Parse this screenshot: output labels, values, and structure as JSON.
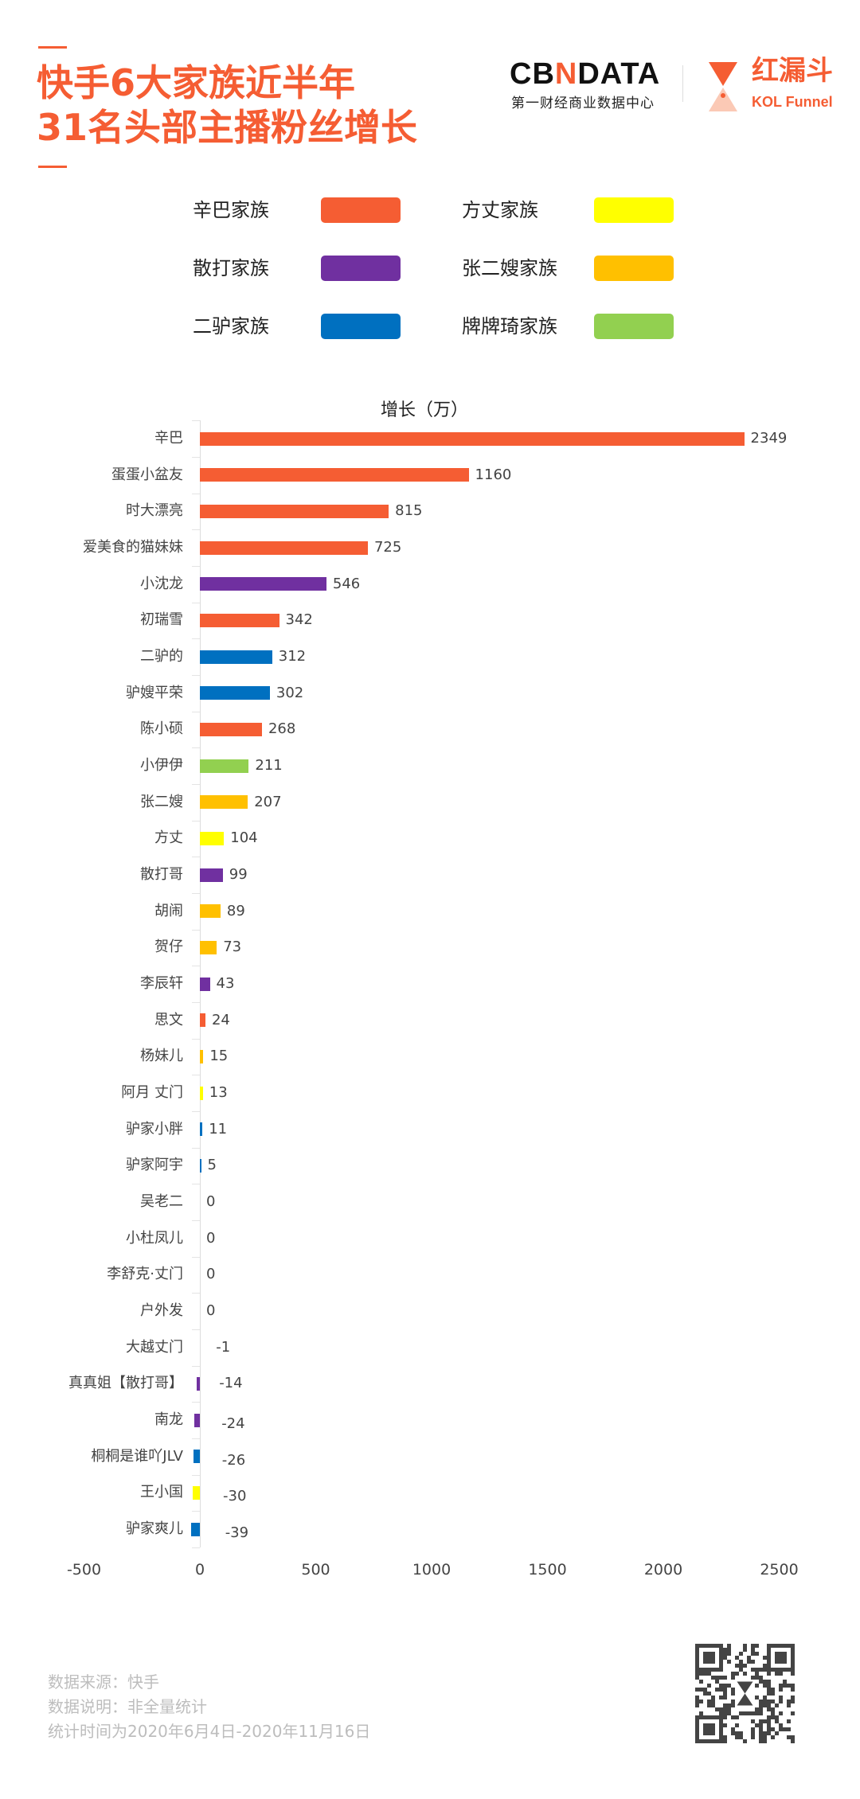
{
  "header": {
    "title_line1": "快手6大家族近半年",
    "title_line2": "31名头部主播粉丝增长"
  },
  "logos": {
    "cbndata": "CBNDATA",
    "cbndata_sub": "第一财经商业数据中心",
    "hld": "红漏斗",
    "kol": "KOL Funnel"
  },
  "legend": [
    {
      "label": "辛巴家族",
      "color": "#F55D33"
    },
    {
      "label": "方丈家族",
      "color": "#FFFF00"
    },
    {
      "label": "散打家族",
      "color": "#7030A0"
    },
    {
      "label": "张二嫂家族",
      "color": "#FFC000"
    },
    {
      "label": "二驴家族",
      "color": "#0070C0"
    },
    {
      "label": "牌牌琦家族",
      "color": "#92D050"
    }
  ],
  "chart_data": {
    "type": "bar",
    "orientation": "horizontal",
    "title": "增长（万）",
    "xlim": [
      -500,
      2500
    ],
    "xticks": [
      "-500",
      "0",
      "500",
      "1000",
      "1500",
      "2000",
      "2500"
    ],
    "grid": false,
    "legend_position": "top",
    "categories": [
      "辛巴",
      "蛋蛋小盆友",
      "时大漂亮",
      "爱美食的猫妹妹",
      "小沈龙",
      "初瑞雪",
      "二驴的",
      "驴嫂平荣",
      "陈小硕",
      "小伊伊",
      "张二嫂",
      "方丈",
      "散打哥",
      "胡闹",
      "贺仔",
      "李辰轩",
      "思文",
      "杨妹儿",
      "阿月 丈门",
      "驴家小胖",
      "驴家阿宇",
      "吴老二",
      "小杜凤儿",
      "李舒克·丈门",
      "户外发",
      "大越丈门",
      "真真姐【散打哥】",
      "南龙",
      "桐桐是谁吖JLV",
      "王小国",
      "驴家爽儿"
    ],
    "values": [
      2349,
      1160,
      815,
      725,
      546,
      342,
      312,
      302,
      268,
      211,
      207,
      104,
      99,
      89,
      73,
      43,
      24,
      15,
      13,
      11,
      5,
      0,
      0,
      0,
      0,
      -1,
      -14,
      -24,
      -26,
      -30,
      -39
    ],
    "families": [
      "辛巴家族",
      "辛巴家族",
      "辛巴家族",
      "辛巴家族",
      "散打家族",
      "辛巴家族",
      "二驴家族",
      "二驴家族",
      "辛巴家族",
      "牌牌琦家族",
      "张二嫂家族",
      "方丈家族",
      "散打家族",
      "张二嫂家族",
      "张二嫂家族",
      "散打家族",
      "辛巴家族",
      "张二嫂家族",
      "方丈家族",
      "二驴家族",
      "二驴家族",
      null,
      null,
      null,
      null,
      null,
      "散打家族",
      "散打家族",
      "二驴家族",
      "方丈家族",
      "二驴家族"
    ]
  },
  "footer": {
    "source": "数据来源：快手",
    "note": "数据说明：非全量统计",
    "period": "统计时间为2020年6月4日-2020年11月16日"
  }
}
